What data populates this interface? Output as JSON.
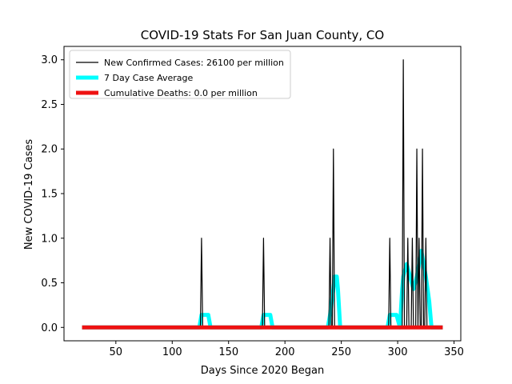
{
  "chart_data": {
    "type": "line",
    "title": "COVID-19 Stats For San Juan County, CO",
    "xlabel": "Days Since 2020 Began",
    "ylabel": "New COVID-19 Cases",
    "xlim": [
      20,
      340
    ],
    "ylim": [
      0,
      3.0
    ],
    "x_ticks": [
      50,
      100,
      150,
      200,
      250,
      300,
      350
    ],
    "x_tick_labels": [
      "50",
      "100",
      "150",
      "200",
      "250",
      "300",
      "350"
    ],
    "y_ticks": [
      0,
      0.5,
      1.0,
      1.5,
      2.0,
      2.5,
      3.0
    ],
    "y_tick_labels": [
      "0.0",
      "0.5",
      "1.0",
      "1.5",
      "2.0",
      "2.5",
      "3.0"
    ],
    "grid": false,
    "legend_position": "top-left",
    "series": [
      {
        "name": "New Confirmed Cases: 26100 per million",
        "color": "#000000",
        "points": [
          [
            125,
            0
          ],
          [
            126,
            1
          ],
          [
            127,
            0
          ],
          [
            180,
            0
          ],
          [
            181,
            1
          ],
          [
            182,
            0
          ],
          [
            239,
            0
          ],
          [
            240,
            1
          ],
          [
            241,
            0
          ],
          [
            242,
            0
          ],
          [
            243,
            2
          ],
          [
            244,
            0
          ],
          [
            292,
            0
          ],
          [
            293,
            1
          ],
          [
            294,
            0
          ],
          [
            304,
            0
          ],
          [
            305,
            3
          ],
          [
            306,
            0
          ],
          [
            308,
            0
          ],
          [
            309,
            1
          ],
          [
            310,
            0
          ],
          [
            312,
            0
          ],
          [
            313,
            1
          ],
          [
            314,
            0
          ],
          [
            316,
            0
          ],
          [
            317,
            2
          ],
          [
            318,
            0
          ],
          [
            319,
            1
          ],
          [
            320,
            0
          ],
          [
            321,
            0
          ],
          [
            322,
            2
          ],
          [
            323,
            0
          ],
          [
            324,
            0
          ],
          [
            325,
            1
          ],
          [
            326,
            0
          ]
        ]
      },
      {
        "name": "7 Day Case Average",
        "color": "#00ffff",
        "points": [
          [
            20,
            0
          ],
          [
            124,
            0
          ],
          [
            126,
            0.14
          ],
          [
            132,
            0.14
          ],
          [
            134,
            0
          ],
          [
            179,
            0
          ],
          [
            181,
            0.14
          ],
          [
            187,
            0.14
          ],
          [
            189,
            0
          ],
          [
            238,
            0
          ],
          [
            240,
            0.14
          ],
          [
            243,
            0.43
          ],
          [
            244,
            0.57
          ],
          [
            246,
            0.57
          ],
          [
            247,
            0.43
          ],
          [
            249,
            0
          ],
          [
            291,
            0
          ],
          [
            293,
            0.14
          ],
          [
            299,
            0.14
          ],
          [
            302,
            0
          ],
          [
            304,
            0.43
          ],
          [
            305,
            0.57
          ],
          [
            308,
            0.71
          ],
          [
            311,
            0.57
          ],
          [
            314,
            0.43
          ],
          [
            317,
            0.57
          ],
          [
            319,
            0.71
          ],
          [
            321,
            0.86
          ],
          [
            323,
            0.71
          ],
          [
            325,
            0.57
          ],
          [
            328,
            0.29
          ],
          [
            330,
            0
          ],
          [
            340,
            0
          ]
        ]
      },
      {
        "name": "Cumulative Deaths: 0.0 per million",
        "color": "#ee1111",
        "points": [
          [
            20,
            0
          ],
          [
            340,
            0
          ]
        ]
      }
    ]
  }
}
